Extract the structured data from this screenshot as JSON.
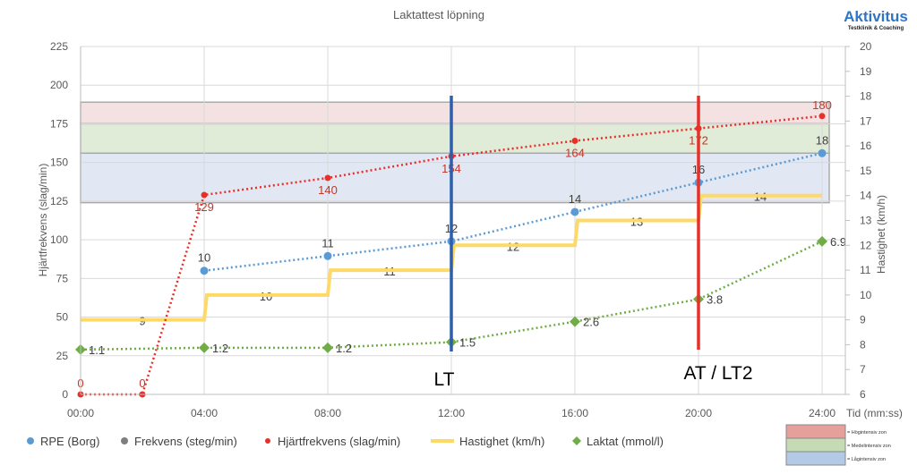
{
  "chart_data": {
    "type": "line",
    "title": "Laktattest löpning",
    "ylabel": "Hjärtfrekvens (slag/min)",
    "y2label": "Hastighet (km/h)",
    "xlabel": "Tid (mm:ss)",
    "ylim": [
      0,
      225
    ],
    "yticks": [
      0,
      25,
      50,
      75,
      100,
      125,
      150,
      175,
      200,
      225
    ],
    "y2lim": [
      6,
      20
    ],
    "y2ticks": [
      6,
      7,
      8,
      9,
      10,
      11,
      12,
      13,
      14,
      15,
      16,
      17,
      18,
      19,
      20
    ],
    "xticks": [
      "00:00",
      "04:00",
      "08:00",
      "12:00",
      "16:00",
      "20:00",
      "24:00"
    ],
    "grid": true,
    "legend": "bottom",
    "series": [
      {
        "name": "RPE (Borg)",
        "color": "#5b9bd5",
        "x": [
          4,
          8,
          12,
          16,
          20,
          24
        ],
        "values": [
          10,
          11,
          12,
          14,
          16,
          18
        ]
      },
      {
        "name": "Frekvens (steg/min)",
        "color": "#7f7f7f",
        "x": [],
        "values": []
      },
      {
        "name": "Hjärtfrekvens (slag/min)",
        "color": "#e8302a",
        "x": [
          0,
          2,
          4,
          8,
          12,
          16,
          20,
          24
        ],
        "values": [
          0,
          0,
          129,
          140,
          154,
          164,
          172,
          180
        ]
      },
      {
        "name": "Hastighet (km/h)",
        "color": "#ffd966",
        "x": [
          0,
          4,
          8,
          12,
          16,
          20
        ],
        "values": [
          9,
          10,
          11,
          12,
          13,
          14
        ],
        "step_end": 24
      },
      {
        "name": "Laktat (mmol/l)",
        "color": "#70ad47",
        "x": [
          0,
          4,
          8,
          12,
          16,
          20,
          24
        ],
        "values": [
          1.1,
          1.2,
          1.2,
          1.5,
          2.6,
          3.8,
          6.9
        ]
      }
    ],
    "zones": [
      {
        "label": "= Högintensiv zon",
        "from": 175,
        "to": 189,
        "color": "#f4e1e1",
        "legend_color": "#e6a09c"
      },
      {
        "label": "= Medelintensiv zon",
        "from": 156,
        "to": 175,
        "color": "#e0ebd8",
        "legend_color": "#c5dbb4"
      },
      {
        "label": "= Lågintensiv zon",
        "from": 124,
        "to": 156,
        "color": "#e1e7f3",
        "legend_color": "#b4c9e6"
      }
    ],
    "markers": [
      {
        "label": "LT",
        "x": 12,
        "color": "#2e5fac"
      },
      {
        "label": "AT / LT2",
        "x": 20,
        "color": "#e8302a"
      }
    ]
  },
  "logo": {
    "name": "Aktivitus",
    "tagline": "Testklinik & Coaching"
  }
}
